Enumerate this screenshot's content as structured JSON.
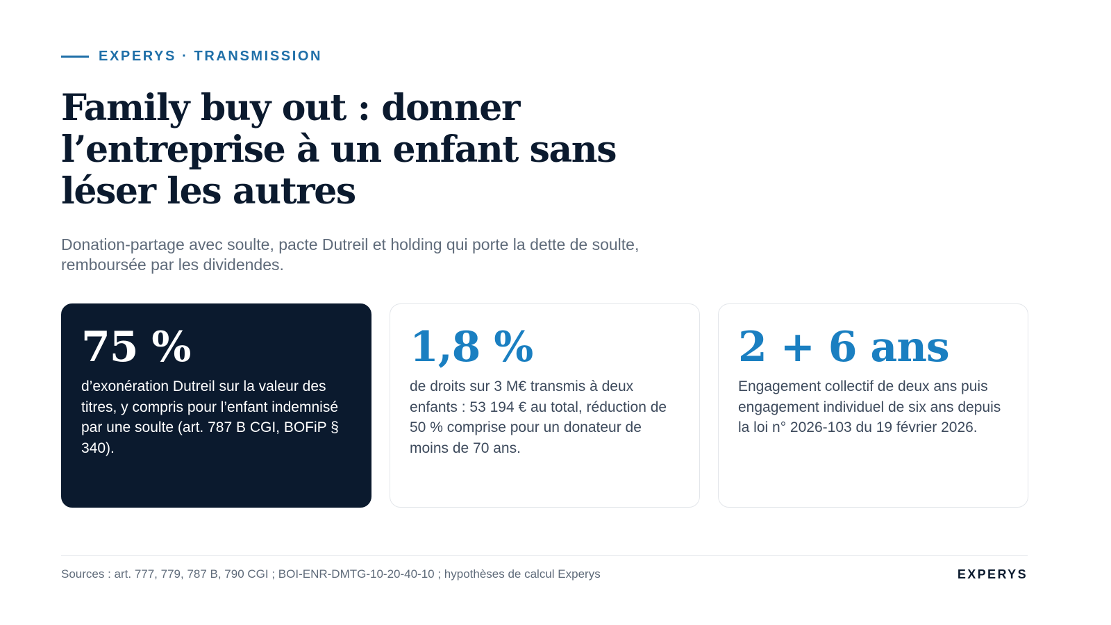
{
  "header": {
    "eyebrow": "EXPERYS · TRANSMISSION",
    "title": "Family buy out : donner l’entreprise à un enfant sans léser les autres",
    "subtitle": "Donation-partage avec soulte, pacte Dutreil et holding qui porte la dette de soulte, remboursée par les dividendes."
  },
  "cards": [
    {
      "figure": "75 %",
      "text": "d’exonération Dutreil sur la valeur des titres, y compris pour l’enfant indemnisé par une soulte (art. 787 B CGI, BOFiP § 340)."
    },
    {
      "figure": "1,8 %",
      "text": "de droits sur 3 M€ transmis à deux enfants : 53 194 € au total, réduction de 50 % comprise pour un donateur de moins de 70 ans."
    },
    {
      "figure": "2 + 6 ans",
      "text": "Engagement collectif de deux ans puis engagement individuel de six ans depuis la loi n° 2026-103 du 19 février 2026."
    }
  ],
  "footer": {
    "sources": "Sources : art. 777, 779, 787 B, 790 CGI ; BOI-ENR-DMTG-10-20-40-10 ; hypothèses de calcul Experys",
    "brand": "EXPERYS"
  },
  "colors": {
    "navy": "#0b1a2e",
    "accent_blue": "#1a7fc1",
    "eyebrow_blue": "#1f6fa8",
    "muted_text": "#5f6b7a"
  }
}
